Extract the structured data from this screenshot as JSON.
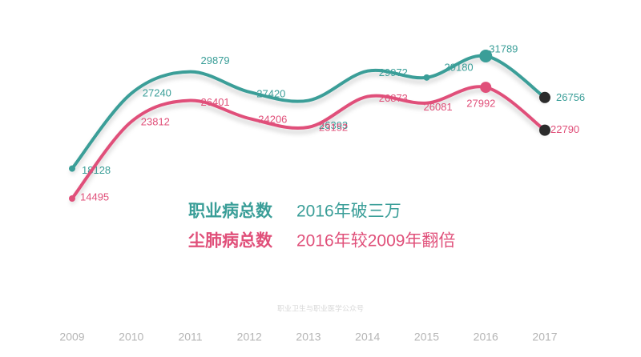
{
  "chart_data": {
    "type": "line",
    "categories": [
      "2009",
      "2010",
      "2011",
      "2012",
      "2013",
      "2014",
      "2015",
      "2016",
      "2017"
    ],
    "series": [
      {
        "name": "职业病总数",
        "color": "#3a9e98",
        "annotation": "2016年破三万",
        "values": [
          18128,
          27240,
          29879,
          27420,
          26393,
          29972,
          29180,
          31789,
          26756
        ]
      },
      {
        "name": "尘肺病总数",
        "color": "#e0507a",
        "annotation": "2016年较2009年翻倍",
        "values": [
          14495,
          23812,
          26401,
          24206,
          23152,
          26873,
          26081,
          27992,
          22790
        ]
      }
    ],
    "source": "职业卫生与职业医学公众号"
  }
}
